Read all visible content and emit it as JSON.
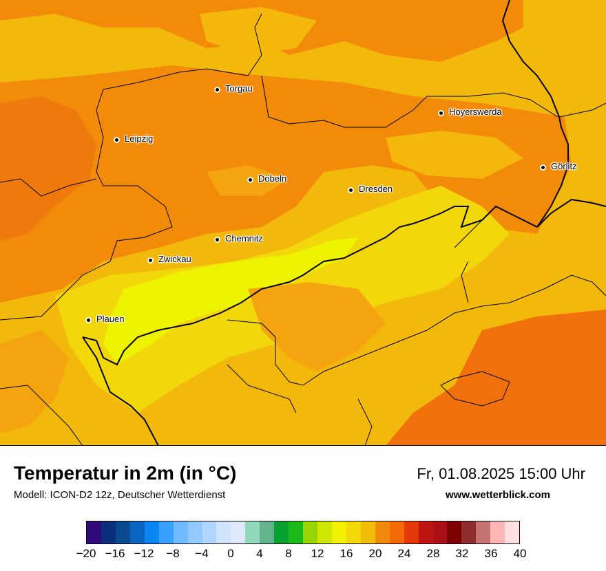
{
  "title": "Temperatur in 2m (in °C)",
  "model": "Modell: ICON-D2 12z, Deutscher Wetterdienst",
  "datetime": "Fr, 01.08.2025 15:00 Uhr",
  "website": "www.wetterblick.com",
  "cities": [
    {
      "name": "Torgau"
    },
    {
      "name": "Hoyerswerda"
    },
    {
      "name": "Leipzig"
    },
    {
      "name": "Görlitz"
    },
    {
      "name": "Döbeln"
    },
    {
      "name": "Dresden"
    },
    {
      "name": "Chemnitz"
    },
    {
      "name": "Zwickau"
    },
    {
      "name": "Plauen"
    }
  ],
  "legend": {
    "colors": [
      "#2e0a7a",
      "#0b2f7a",
      "#0c4a8f",
      "#0a64c1",
      "#0a85f2",
      "#3aa0ff",
      "#72baff",
      "#93c9ff",
      "#b0d6ff",
      "#cfe4fb",
      "#dde9fa",
      "#92d8bc",
      "#62b48c",
      "#08a12f",
      "#1cba18",
      "#9bd404",
      "#cfe600",
      "#f2f200",
      "#f3d90a",
      "#f1bb0a",
      "#f18a0c",
      "#f26b06",
      "#e5390b",
      "#bc1413",
      "#aa1016",
      "#7f0202",
      "#8e2d2d",
      "#c57472",
      "#ffb6b5",
      "#ffdfe0"
    ],
    "ticks": [
      "−20",
      "−16",
      "−12",
      "−8",
      "−4",
      "0",
      "4",
      "8",
      "12",
      "16",
      "20",
      "24",
      "28",
      "32",
      "36",
      "40"
    ]
  },
  "colors": {
    "warm_orange": "#f28a0a",
    "orange_mid": "#f3a40e",
    "light_orange": "#f4b80c",
    "yellow": "#f2d70a",
    "bright_yellow": "#eef400",
    "deep_orange": "#f0700c"
  }
}
